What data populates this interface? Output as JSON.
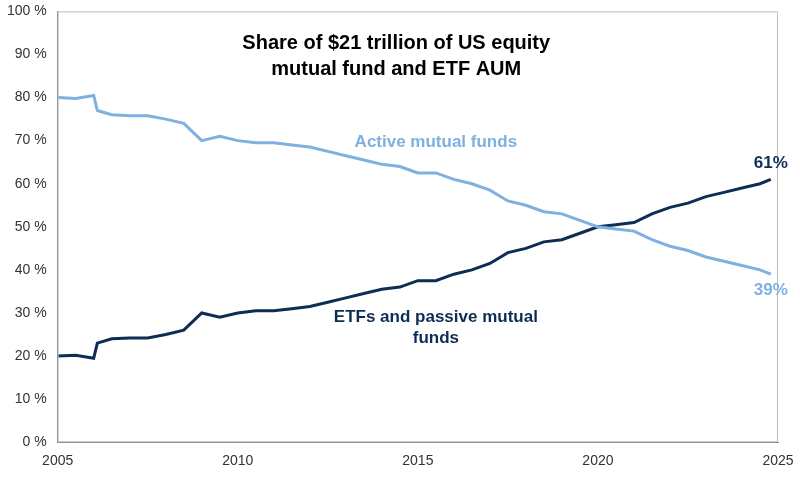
{
  "chart_data": {
    "type": "line",
    "title": "Share of $21 trillion of US equity mutual fund and ETF AUM",
    "x": [
      2005,
      2005.5,
      2006,
      2006.1,
      2006.5,
      2007,
      2007.5,
      2008,
      2008.5,
      2009,
      2009.5,
      2010,
      2010.5,
      2011,
      2011.5,
      2012,
      2012.5,
      2013,
      2013.5,
      2014,
      2014.5,
      2015,
      2015.5,
      2016,
      2016.5,
      2017,
      2017.5,
      2018,
      2018.5,
      2019,
      2019.5,
      2020,
      2020.5,
      2021,
      2021.5,
      2022,
      2022.5,
      2023,
      2023.5,
      2024,
      2024.5,
      2024.8
    ],
    "series": [
      {
        "name": "Active mutual funds",
        "color": "#7fb0df",
        "values": [
          80,
          79.8,
          80.5,
          77,
          76,
          75.8,
          75.8,
          75,
          74,
          70,
          71,
          70,
          69.5,
          69.5,
          69,
          68.5,
          67.5,
          66.5,
          65.5,
          64.5,
          64,
          62.5,
          62.5,
          61,
          60,
          58.5,
          56,
          55,
          53.5,
          53,
          51.5,
          50,
          49.5,
          49,
          47,
          45.5,
          44.5,
          43,
          42,
          41,
          40,
          39
        ],
        "value_labels": [
          null,
          null,
          null,
          null,
          null,
          null,
          null,
          null,
          null,
          null,
          null,
          null,
          null,
          null,
          null,
          null,
          null,
          null,
          null,
          null,
          null,
          null,
          null,
          null,
          null,
          null,
          null,
          null,
          null,
          null,
          null,
          null,
          null,
          null,
          null,
          null,
          null,
          null,
          null,
          null,
          null,
          "39%"
        ]
      },
      {
        "name": "ETFs and passive mutual funds",
        "color": "#0d2d55",
        "values": [
          20,
          20.2,
          19.5,
          23,
          24,
          24.2,
          24.2,
          25,
          26,
          30,
          29,
          30,
          30.5,
          30.5,
          31,
          31.5,
          32.5,
          33.5,
          34.5,
          35.5,
          36,
          37.5,
          37.5,
          39,
          40,
          41.5,
          44,
          45,
          46.5,
          47,
          48.5,
          50,
          50.5,
          51,
          53,
          54.5,
          55.5,
          57,
          58,
          59,
          60,
          61
        ],
        "value_labels": [
          null,
          null,
          null,
          null,
          null,
          null,
          null,
          null,
          null,
          null,
          null,
          null,
          null,
          null,
          null,
          null,
          null,
          null,
          null,
          null,
          null,
          null,
          null,
          null,
          null,
          null,
          null,
          null,
          null,
          null,
          null,
          null,
          null,
          null,
          null,
          null,
          null,
          null,
          null,
          null,
          null,
          "61%"
        ]
      }
    ],
    "xlim": [
      2005,
      2025
    ],
    "xticks": [
      2005,
      2010,
      2015,
      2020,
      2025
    ],
    "ylim": [
      0,
      100
    ],
    "yticks": [
      {
        "value": 0,
        "label": "0 %"
      },
      {
        "value": 10,
        "label": "10 %"
      },
      {
        "value": 20,
        "label": "20 %"
      },
      {
        "value": 30,
        "label": "30 %"
      },
      {
        "value": 40,
        "label": "40 %"
      },
      {
        "value": 50,
        "label": "50 %"
      },
      {
        "value": 60,
        "label": "60 %"
      },
      {
        "value": 70,
        "label": "70 %"
      },
      {
        "value": 80,
        "label": "80 %"
      },
      {
        "value": 90,
        "label": "90 %"
      },
      {
        "value": 100,
        "label": "100 %"
      }
    ],
    "grid": false
  }
}
